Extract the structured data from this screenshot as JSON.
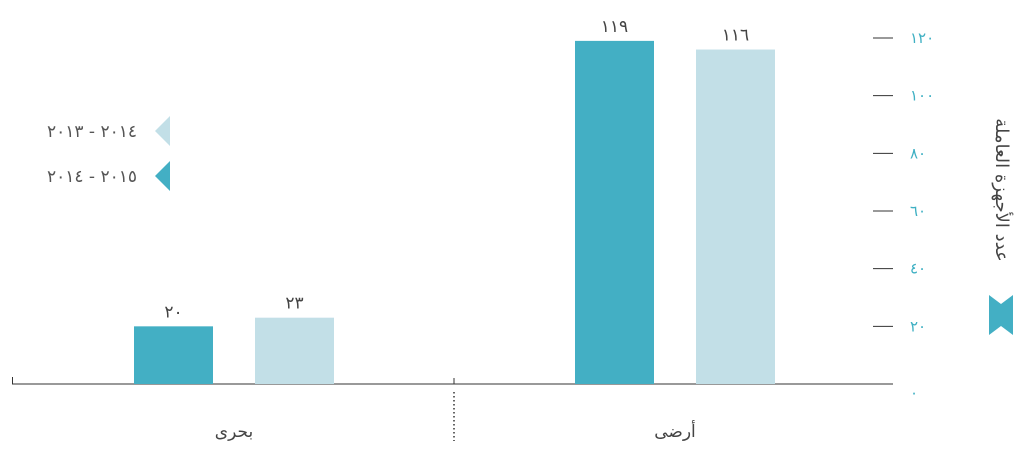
{
  "chart_data": {
    "type": "bar",
    "ylabel": "عدد الأجهزة العاملة",
    "ylim": [
      0,
      120
    ],
    "yticks": [
      0,
      20,
      40,
      60,
      80,
      100,
      120
    ],
    "ytick_labels": [
      "٠",
      "٢٠",
      "٤٠",
      "٦٠",
      "٨٠",
      "١٠٠",
      "١٢٠"
    ],
    "categories": [
      "أرضى",
      "بحرى"
    ],
    "series": [
      {
        "name": "٢٠١٥ - ٢٠١٤",
        "color": "#43afc4",
        "values": [
          119,
          20
        ],
        "value_labels": [
          "١١٩",
          "٢٠"
        ]
      },
      {
        "name": "٢٠١٤ - ٢٠١٣",
        "color": "#c2dfe7",
        "values": [
          116,
          23
        ],
        "value_labels": [
          "١١٦",
          "٢٣"
        ]
      }
    ],
    "legend": {
      "position": "left",
      "order": [
        "٢٠١٤ - ٢٠١٣",
        "٢٠١٥ - ٢٠١٤"
      ]
    },
    "grid": false,
    "accent_color": "#43afc4",
    "axis_color": "#333333"
  }
}
